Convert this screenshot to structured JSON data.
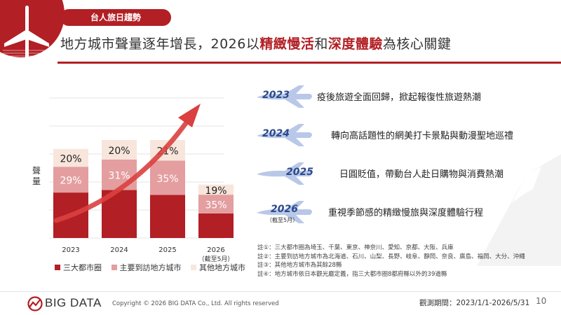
{
  "header": {
    "tag": "台人旅日趨勢",
    "title_parts": [
      "地方城市聲量逐年增長，2026以",
      "精緻慢活",
      "和",
      "深度體驗",
      "為核心關鍵"
    ]
  },
  "chart_data": {
    "type": "bar",
    "stacked": true,
    "categories": [
      "2023",
      "2024",
      "2025",
      "2026"
    ],
    "category_notes": [
      "",
      "",
      "",
      "（截至5月）"
    ],
    "ylabel": "聲量",
    "series": [
      {
        "name": "三大都市圈",
        "values": [
          51,
          49,
          44,
          46
        ],
        "color": "#b21f24",
        "labels": [
          "",
          "",
          "",
          ""
        ]
      },
      {
        "name": "主要到訪地方城市",
        "values": [
          29,
          31,
          35,
          35
        ],
        "color": "#e49ea0",
        "labels": [
          "29%",
          "31%",
          "35%",
          "35%"
        ]
      },
      {
        "name": "其他地方城市",
        "values": [
          20,
          20,
          21,
          19
        ],
        "color": "#f8e6dc",
        "labels": [
          "20%",
          "20%",
          "21%",
          "19%"
        ]
      }
    ],
    "relative_totals": [
      1.0,
      1.1,
      1.1,
      0.6
    ],
    "grid": true
  },
  "timeline": [
    {
      "year": "2023",
      "sub": "",
      "text": "疫後旅遊全面回歸，掀起報復性旅遊熱潮"
    },
    {
      "year": "2024",
      "sub": "",
      "text": "轉向高話題性的網美打卡景點與動漫聖地巡禮"
    },
    {
      "year": "2025",
      "sub": "",
      "text": "日圓貶值，帶動台人赴日購物與消費熱潮"
    },
    {
      "year": "2026",
      "sub": "（截至5月）",
      "text": "重視季節感的精緻慢旅與深度體驗行程"
    }
  ],
  "notes": [
    "註①：三大都市圈為埼玉、千葉、東京、神奈川、愛知、京都、大阪、兵庫",
    "註②：主要到訪地方城市為北海道、石川、山梨、長野、岐阜、靜岡、奈良、廣島、福岡、大分、沖繩",
    "註③：其他地方城市為其餘28縣",
    "註④：地方城市依日本觀光廳定義，指三大都市圈8都府縣以外的39道縣"
  ],
  "footer": {
    "logo": "BIG DATA",
    "copyright": "Copyright © 2026 BIG DATA Co., Ltd. All rights reserved",
    "period": "觀測期間：2023/1/1-2026/5/31",
    "page": "10"
  },
  "colors": {
    "accent": "#b21f24",
    "timeline_plane": "#b9c8e8",
    "year_text": "#2c4a8c"
  }
}
